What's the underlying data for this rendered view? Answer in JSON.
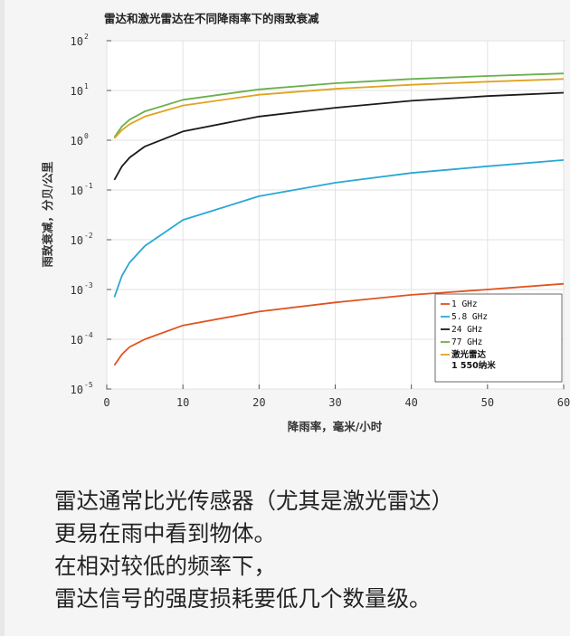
{
  "chart_data": {
    "type": "line",
    "title": "雷达和激光雷达在不同降雨率下的雨致衰减",
    "xlabel": "降雨率，毫米/小时",
    "ylabel": "雨致衰减，分贝/公里",
    "x_scale": "linear",
    "y_scale": "log",
    "xlim": [
      0,
      60
    ],
    "ylim": [
      1e-05,
      100
    ],
    "x_ticks": [
      "0",
      "10",
      "20",
      "30",
      "40",
      "50",
      "60"
    ],
    "y_ticks": [
      {
        "base": "10",
        "exp": "2",
        "value": 100
      },
      {
        "base": "10",
        "exp": "1",
        "value": 10
      },
      {
        "base": "10",
        "exp": "0",
        "value": 1
      },
      {
        "base": "10",
        "exp": "-1",
        "value": 0.1
      },
      {
        "base": "10",
        "exp": "-2",
        "value": 0.01
      },
      {
        "base": "10",
        "exp": "-3",
        "value": 0.001
      },
      {
        "base": "10",
        "exp": "-4",
        "value": 0.0001
      },
      {
        "base": "10",
        "exp": "-5",
        "value": 1e-05
      }
    ],
    "grid": true,
    "legend_position": "bottom-right",
    "series": [
      {
        "name": "1 GHz",
        "color": "#e0531f",
        "x": [
          1,
          2,
          3,
          5,
          10,
          20,
          30,
          40,
          50,
          60
        ],
        "y": [
          3e-05,
          5e-05,
          7e-05,
          0.0001,
          0.00019,
          0.00036,
          0.00055,
          0.00078,
          0.001,
          0.0013
        ]
      },
      {
        "name": "5.8 GHz",
        "color": "#2aa7d4",
        "x": [
          1,
          2,
          3,
          5,
          10,
          20,
          30,
          40,
          50,
          60
        ],
        "y": [
          0.0007,
          0.0019,
          0.0035,
          0.0075,
          0.025,
          0.075,
          0.14,
          0.22,
          0.3,
          0.4
        ]
      },
      {
        "name": "24 GHz",
        "color": "#1a1a1a",
        "x": [
          1,
          2,
          3,
          5,
          10,
          20,
          30,
          40,
          50,
          60
        ],
        "y": [
          0.16,
          0.3,
          0.45,
          0.75,
          1.5,
          3.0,
          4.5,
          6.2,
          7.7,
          9.0
        ]
      },
      {
        "name": "77 GHz",
        "color": "#6ab04c",
        "x": [
          1,
          2,
          3,
          5,
          10,
          20,
          30,
          40,
          50,
          60
        ],
        "y": [
          1.15,
          1.9,
          2.6,
          3.8,
          6.5,
          10.5,
          14,
          17,
          19.5,
          22
        ]
      },
      {
        "name": "激光雷达\n1 550纳米",
        "color": "#e0a41e",
        "x": [
          1,
          2,
          3,
          5,
          10,
          20,
          30,
          40,
          50,
          60
        ],
        "y": [
          1.1,
          1.6,
          2.1,
          3.0,
          5.0,
          8.2,
          10.8,
          13,
          15,
          17
        ]
      }
    ]
  },
  "caption": {
    "lines": [
      "雷达通常比光传感器（尤其是激光雷达）",
      "更易在雨中看到物体。",
      "在相对较低的频率下，",
      "雷达信号的强度损耗要低几个数量级。"
    ]
  }
}
